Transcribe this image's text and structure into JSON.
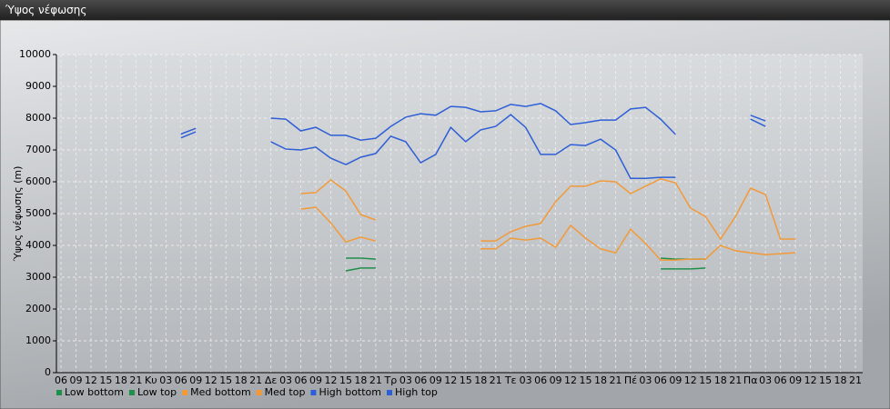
{
  "window_title": "Ύψος νέφωσης",
  "chart_data": {
    "type": "line",
    "y_label": "Ύψος νέφωσης (m)",
    "categories": [
      "06",
      "09",
      "12",
      "15",
      "18",
      "21",
      "Κυ",
      "03",
      "06",
      "09",
      "12",
      "15",
      "18",
      "21",
      "Δε",
      "03",
      "06",
      "09",
      "12",
      "15",
      "18",
      "21",
      "Τρ",
      "03",
      "06",
      "09",
      "12",
      "15",
      "18",
      "21",
      "Τε",
      "03",
      "06",
      "09",
      "12",
      "15",
      "18",
      "21",
      "Πέ",
      "03",
      "06",
      "09",
      "12",
      "15",
      "18",
      "21",
      "Πα",
      "03",
      "06",
      "09",
      "12",
      "15",
      "18",
      "21"
    ],
    "series": [
      {
        "name": "Low bottom",
        "color": "#1f8f4a",
        "values": [
          null,
          null,
          null,
          null,
          null,
          null,
          null,
          null,
          null,
          null,
          null,
          null,
          null,
          null,
          null,
          null,
          null,
          null,
          null,
          3200,
          3290,
          3290,
          null,
          null,
          null,
          null,
          null,
          null,
          null,
          null,
          null,
          null,
          null,
          null,
          null,
          null,
          null,
          null,
          null,
          null,
          3260,
          3260,
          3260,
          3290,
          null,
          null,
          null,
          null,
          null,
          null,
          null,
          null,
          null,
          null
        ]
      },
      {
        "name": "Low top",
        "color": "#1f8f4a",
        "values": [
          null,
          null,
          null,
          null,
          null,
          null,
          null,
          null,
          null,
          null,
          null,
          null,
          null,
          null,
          null,
          null,
          null,
          null,
          null,
          3600,
          3600,
          3570,
          null,
          null,
          null,
          null,
          null,
          null,
          null,
          null,
          null,
          null,
          null,
          null,
          null,
          null,
          null,
          null,
          null,
          null,
          3600,
          3570,
          3570,
          3570,
          null,
          null,
          null,
          null,
          null,
          null,
          null,
          null,
          null,
          null
        ]
      },
      {
        "name": "Med bottom",
        "color": "#f29a38",
        "values": [
          null,
          null,
          null,
          null,
          null,
          null,
          null,
          null,
          null,
          null,
          null,
          null,
          null,
          null,
          null,
          null,
          5140,
          5200,
          4710,
          4110,
          4260,
          4140,
          null,
          null,
          null,
          null,
          null,
          null,
          3890,
          3890,
          4230,
          4170,
          4230,
          3940,
          4630,
          4230,
          3890,
          3770,
          4510,
          4060,
          3540,
          3540,
          3570,
          3570,
          4000,
          3830,
          3770,
          3710,
          3740,
          3770,
          null,
          null,
          null,
          null
        ]
      },
      {
        "name": "Med top",
        "color": "#f29a38",
        "values": [
          null,
          null,
          null,
          null,
          null,
          null,
          null,
          null,
          null,
          null,
          null,
          null,
          null,
          null,
          null,
          null,
          5630,
          5660,
          6060,
          5710,
          4970,
          4800,
          null,
          null,
          null,
          null,
          null,
          null,
          4140,
          4140,
          4430,
          4600,
          4690,
          5370,
          5860,
          5860,
          6030,
          6000,
          5630,
          5860,
          6090,
          5970,
          5170,
          4910,
          4200,
          4910,
          5800,
          5600,
          4200,
          4200,
          null,
          null,
          null,
          null
        ]
      },
      {
        "name": "High bottom",
        "color": "#2f5fd6",
        "values": [
          null,
          null,
          null,
          null,
          null,
          null,
          null,
          null,
          7380,
          7570,
          null,
          null,
          null,
          null,
          7260,
          7030,
          7000,
          7090,
          6740,
          6540,
          6770,
          6890,
          7430,
          7260,
          6600,
          6860,
          7710,
          7260,
          7630,
          7740,
          8110,
          7710,
          6860,
          6860,
          7170,
          7140,
          7340,
          7000,
          6110,
          6110,
          6140,
          6140,
          null,
          null,
          null,
          null,
          7970,
          7740,
          null,
          null,
          null,
          null,
          null,
          null
        ]
      },
      {
        "name": "High top",
        "color": "#2f5fd6",
        "values": [
          null,
          null,
          null,
          null,
          null,
          null,
          null,
          null,
          7500,
          7680,
          null,
          null,
          null,
          null,
          8000,
          7970,
          7600,
          7710,
          7460,
          7460,
          7310,
          7370,
          7740,
          8030,
          8140,
          8090,
          8370,
          8340,
          8200,
          8230,
          8430,
          8370,
          8460,
          8230,
          7800,
          7860,
          7940,
          7940,
          8290,
          8340,
          7970,
          7490,
          null,
          null,
          null,
          null,
          8090,
          7910,
          null,
          null,
          null,
          null,
          null,
          null
        ]
      }
    ],
    "ylim": [
      0,
      10000
    ],
    "yticks": [
      0,
      1000,
      2000,
      3000,
      4000,
      5000,
      6000,
      7000,
      8000,
      9000,
      10000
    ],
    "grid": true,
    "legend": "bottom"
  }
}
